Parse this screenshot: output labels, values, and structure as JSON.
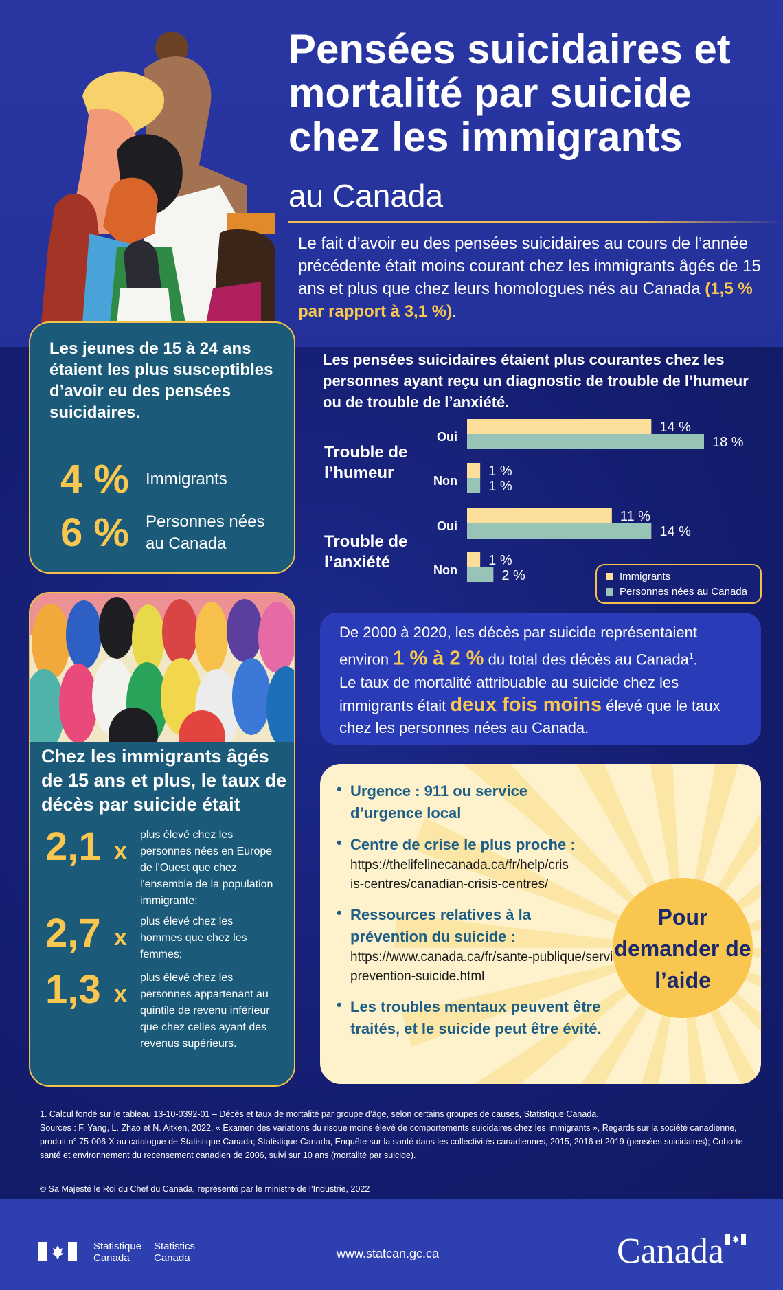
{
  "header": {
    "title": "Pensées suicidaires et mortalité par suicide chez les immigrants",
    "subtitle": "au Canada",
    "intro_text": "Le fait d’avoir eu des pensées suicidaires au cours de l’année précédente était moins courant chez les immigrants âgés de 15 ans et plus que chez leurs homologues nés au Canada ",
    "intro_highlight": "(1,5 % par rapport à 3,1 %)",
    "intro_end": "."
  },
  "youth": {
    "heading": "Les jeunes de 15 à 24 ans étaient les plus susceptibles d’avoir eu des pensées suicidaires.",
    "stats": [
      {
        "value": "4 %",
        "label": "Immigrants"
      },
      {
        "value": "6 %",
        "label": "Personnes nées au Canada"
      }
    ]
  },
  "chart_heading": "Les pensées suicidaires étaient plus courantes chez les personnes ayant reçu un diagnostic de trouble de l’humeur ou de trouble de l’anxiété.",
  "chart_data": {
    "type": "bar",
    "orientation": "horizontal",
    "groups": [
      {
        "label": "Trouble de l’humeur",
        "rows": [
          {
            "label": "Oui",
            "values": [
              14,
              18
            ],
            "value_labels": [
              "14 %",
              "18 %"
            ]
          },
          {
            "label": "Non",
            "values": [
              1,
              1
            ],
            "value_labels": [
              "1 %",
              "1 %"
            ]
          }
        ]
      },
      {
        "label": "Trouble de l’anxiété",
        "rows": [
          {
            "label": "Oui",
            "values": [
              11,
              14
            ],
            "value_labels": [
              "11 %",
              "14 %"
            ]
          },
          {
            "label": "Non",
            "values": [
              1,
              2
            ],
            "value_labels": [
              "1 %",
              "2 %"
            ]
          }
        ]
      }
    ],
    "series": [
      {
        "name": "Immigrants",
        "color": "#fbdf9a"
      },
      {
        "name": "Personnes nées au Canada",
        "color": "#98c4b8"
      }
    ],
    "xlim": [
      0,
      18
    ],
    "legend_position": "bottom-right",
    "grid": false
  },
  "deaths": {
    "p1_a": "De 2000 à 2020, les décès par suicide représentaient environ ",
    "p1_highlight": "1 % à 2 %",
    "p1_b": " du total des décès au Canada",
    "p1_sup": "1",
    "p1_end": ".",
    "p2_a": "Le taux de mortalité attribuable au suicide chez les immigrants était ",
    "p2_highlight": "deux fois moins",
    "p2_b": " élevé que le taux chez les personnes nées au Canada."
  },
  "rates": {
    "heading": "Chez les immigrants âgés de 15 ans et plus, le taux de décès par suicide était",
    "items": [
      {
        "value": "2,1",
        "x": "x",
        "text": "plus élevé chez les personnes nées en Europe de l'Ouest que chez l'ensemble de la population immigrante;"
      },
      {
        "value": "2,7",
        "x": "x",
        "text": "plus élevé chez les hommes que chez les femmes;"
      },
      {
        "value": "1,3",
        "x": "x",
        "text": "plus élevé chez les personnes appartenant au quintile de revenu inférieur que chez celles ayant des revenus supérieurs."
      }
    ]
  },
  "help": {
    "items": [
      {
        "strong": "Urgence : 911 ou service d’urgence local",
        "url": ""
      },
      {
        "strong": "Centre de crise le plus proche :",
        "url": "https://thelifelinecanada.ca/fr/help/crisis-centres/canadian-crisis-centres/"
      },
      {
        "strong": "Ressources relatives à la prévention du suicide :",
        "url": "https://www.canada.ca/fr/sante-publique/services/prevention-suicide.html"
      },
      {
        "strong": "Les troubles mentaux peuvent être traités, et le suicide peut être évité.",
        "url": ""
      }
    ],
    "sun_text": "Pour demander de l’aide"
  },
  "notes": {
    "note1": "1. Calcul fondé sur le tableau 13-10-0392-01 – Décès et taux de mortalité par groupe d’âge, selon certains groupes de causes, Statistique Canada.",
    "sources": "Sources : F. Yang, L. Zhao et N. Aitken, 2022, « Examen des variations du risque moins élevé de comportements suicidaires chez les immigrants », Regards sur la société canadienne, produit n° 75-006-X au catalogue de Statistique Canada; Statistique Canada, Enquête sur la santé dans les collectivités canadiennes, 2015, 2016 et 2019 (pensées suicidaires); Cohorte santé et environnement du recensement canadien de 2006, suivi sur 10 ans (mortalité par suicide).",
    "copyright": "© Sa Majesté le Roi du Chef du Canada, représenté par le ministre de l’Industrie, 2022"
  },
  "footer": {
    "sc_fr": "Statistique Canada",
    "sc_en": "Statistics Canada",
    "url": "www.statcan.gc.ca",
    "wordmark": "Canada"
  },
  "colors": {
    "gold": "#f9c74f",
    "teal_box": "#1b5a79",
    "navy": "#172077",
    "help_bg": "#fdf2cc"
  }
}
